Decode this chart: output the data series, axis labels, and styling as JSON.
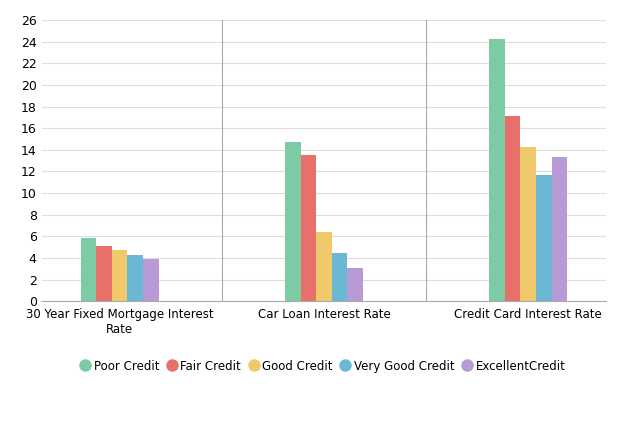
{
  "categories": [
    "30 Year Fixed Mortgage Interest\nRate",
    "Car Loan Interest Rate",
    "Credit Card Interest Rate"
  ],
  "series": {
    "Poor Credit": [
      5.8,
      14.7,
      24.2
    ],
    "Fair Credit": [
      5.1,
      13.5,
      17.1
    ],
    "Good Credit": [
      4.7,
      6.4,
      14.3
    ],
    "Very Good Credit": [
      4.3,
      4.5,
      11.7
    ],
    "ExcellentCredit": [
      3.9,
      3.1,
      13.3
    ]
  },
  "colors": {
    "Poor Credit": "#7DCBA4",
    "Fair Credit": "#E8706A",
    "Good Credit": "#F0C96A",
    "Very Good Credit": "#6BB8D4",
    "ExcellentCredit": "#B89AD4"
  },
  "ylim": [
    0,
    26
  ],
  "yticks": [
    0,
    2,
    4,
    6,
    8,
    10,
    12,
    14,
    16,
    18,
    20,
    22,
    24,
    26
  ],
  "bar_width": 0.13,
  "background_color": "#ffffff",
  "grid_color": "#dddddd",
  "legend_labels": [
    "Poor Credit",
    "Fair Credit",
    "Good Credit",
    "Very Good Credit",
    "ExcellentCredit"
  ]
}
